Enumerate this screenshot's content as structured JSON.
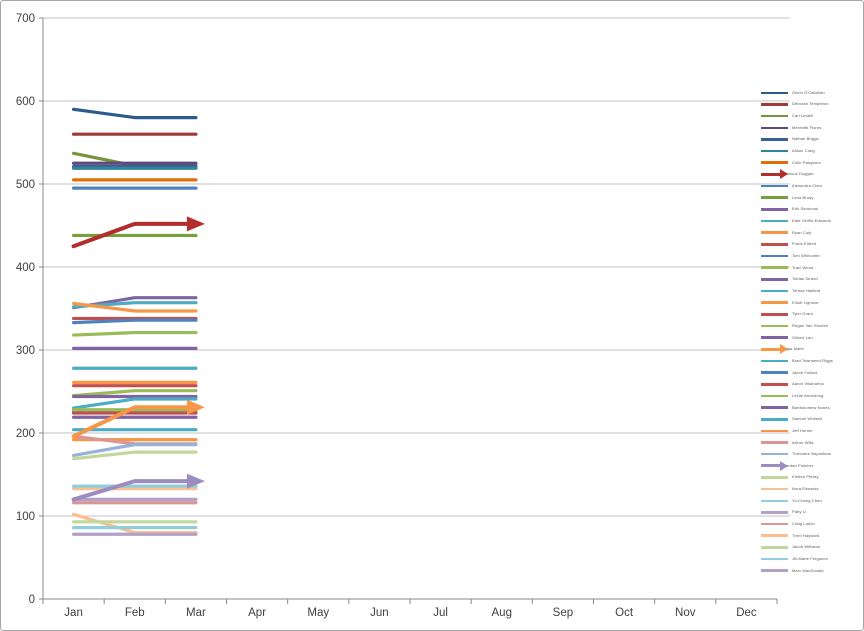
{
  "chart_data": {
    "type": "line",
    "title": "",
    "xlabel": "",
    "ylabel": "",
    "x_categories": [
      "Jan",
      "Feb",
      "Mar",
      "Apr",
      "May",
      "Jun",
      "Jul",
      "Aug",
      "Sep",
      "Oct",
      "Nov",
      "Dec"
    ],
    "y_ticks": [
      0,
      100,
      200,
      300,
      400,
      500,
      600,
      700
    ],
    "ylim": [
      0,
      700
    ],
    "grid": "horizontal",
    "legend_position": "right",
    "plotted_range_note": "series have data for Jan-Mar only",
    "series": [
      {
        "name": "Gavin O'Callahan",
        "color": "#2c5a8c",
        "arrow": false,
        "values": [
          590,
          580,
          580
        ]
      },
      {
        "name": "Deborah Templeton",
        "color": "#9e3a38",
        "arrow": false,
        "values": [
          560,
          560,
          560
        ]
      },
      {
        "name": "Carl Lindell",
        "color": "#77933c",
        "arrow": false,
        "values": [
          537,
          522,
          522
        ]
      },
      {
        "name": "Meredith Flores",
        "color": "#60497b",
        "arrow": false,
        "values": [
          525,
          525,
          525
        ]
      },
      {
        "name": "Nathan Briggs",
        "color": "#376092",
        "arrow": false,
        "values": [
          521,
          521,
          521
        ]
      },
      {
        "name": "Alison Craig",
        "color": "#31849b",
        "arrow": false,
        "values": [
          519,
          519,
          519
        ]
      },
      {
        "name": "Colin Pangborn",
        "color": "#e36c0a",
        "arrow": false,
        "values": [
          505,
          505,
          505
        ]
      },
      {
        "name": "Marcus Duggan",
        "color": "#b02e2c",
        "arrow": true,
        "values": [
          425,
          452,
          452
        ]
      },
      {
        "name": "Alexandra Chen",
        "color": "#4f81bd",
        "arrow": false,
        "values": [
          495,
          495,
          495
        ]
      },
      {
        "name": "Lena Brody",
        "color": "#76a03e",
        "arrow": false,
        "values": [
          438,
          438,
          438
        ]
      },
      {
        "name": "Erik Sandoval",
        "color": "#8064a2",
        "arrow": false,
        "values": [
          351,
          363,
          363
        ]
      },
      {
        "name": "Kate Griffin-Edwards",
        "color": "#4bacc6",
        "arrow": false,
        "values": [
          352,
          357,
          357
        ]
      },
      {
        "name": "Ryan Culp",
        "color": "#f79646",
        "arrow": false,
        "values": [
          356,
          347,
          347
        ]
      },
      {
        "name": "Frank Eldred",
        "color": "#c0504d",
        "arrow": false,
        "values": [
          338,
          338,
          338
        ]
      },
      {
        "name": "Tom Whitcomb",
        "color": "#4f81bd",
        "arrow": false,
        "values": [
          333,
          336,
          336
        ]
      },
      {
        "name": "Traci Wood",
        "color": "#9bbb59",
        "arrow": false,
        "values": [
          318,
          321,
          321
        ]
      },
      {
        "name": "Tobias Strand",
        "color": "#8064a2",
        "arrow": false,
        "values": [
          302,
          302,
          302
        ]
      },
      {
        "name": "Teresa Hatfield",
        "color": "#4bacc6",
        "arrow": false,
        "values": [
          278,
          278,
          278
        ]
      },
      {
        "name": "Elliott Lightner",
        "color": "#f79646",
        "arrow": false,
        "values": [
          261,
          261,
          261
        ]
      },
      {
        "name": "Tyler Grant",
        "color": "#c0504d",
        "arrow": false,
        "values": [
          257,
          257,
          257
        ]
      },
      {
        "name": "Regan Van Slooten",
        "color": "#9bbb59",
        "arrow": false,
        "values": [
          245,
          251,
          251
        ]
      },
      {
        "name": "Gilbert Lau",
        "color": "#8064a2",
        "arrow": false,
        "values": [
          244,
          244,
          244
        ]
      },
      {
        "name": "Lara Maier",
        "color": "#f79646",
        "arrow": true,
        "values": [
          196,
          231,
          231
        ]
      },
      {
        "name": "Brad Townsend-Riggs",
        "color": "#4bacc6",
        "arrow": false,
        "values": [
          230,
          241,
          241
        ]
      },
      {
        "name": "Jacob Fullard",
        "color": "#4f81bd",
        "arrow": false,
        "values": [
          226,
          226,
          226
        ]
      },
      {
        "name": "Aaron Villanueva",
        "color": "#c0504d",
        "arrow": false,
        "values": [
          224,
          224,
          224
        ]
      },
      {
        "name": "Leslie Armstrong",
        "color": "#9bbb59",
        "arrow": false,
        "values": [
          228,
          228,
          228
        ]
      },
      {
        "name": "Bartholomew Nunes",
        "color": "#8064a2",
        "arrow": false,
        "values": [
          219,
          219,
          219
        ]
      },
      {
        "name": "Samuel Whitsell",
        "color": "#4bacc6",
        "arrow": false,
        "values": [
          204,
          204,
          204
        ]
      },
      {
        "name": "Jeff Horner",
        "color": "#f79646",
        "arrow": false,
        "values": [
          192,
          192,
          192
        ]
      },
      {
        "name": "Arturo Wills",
        "color": "#d99694",
        "arrow": false,
        "values": [
          196,
          187,
          187
        ]
      },
      {
        "name": "Theodore Napolitano",
        "color": "#95b3d7",
        "arrow": false,
        "values": [
          173,
          186,
          186
        ]
      },
      {
        "name": "Jordan Fletcher",
        "color": "#9d8cc2",
        "arrow": true,
        "values": [
          120,
          142,
          142
        ]
      },
      {
        "name": "Kirsten Plessy",
        "color": "#c3d69b",
        "arrow": false,
        "values": [
          169,
          177,
          177
        ]
      },
      {
        "name": "Nora Edwards",
        "color": "#fac090",
        "arrow": false,
        "values": [
          133,
          133,
          133
        ]
      },
      {
        "name": "Yu-Cheng Chen",
        "color": "#92cddc",
        "arrow": false,
        "values": [
          136,
          136,
          136
        ]
      },
      {
        "name": "Patty Li",
        "color": "#b3a2c7",
        "arrow": false,
        "values": [
          120,
          120,
          120
        ]
      },
      {
        "name": "Craig Larkin",
        "color": "#d99694",
        "arrow": false,
        "values": [
          116,
          116,
          116
        ]
      },
      {
        "name": "Trent Hayward",
        "color": "#fbbf8f",
        "arrow": false,
        "values": [
          102,
          80,
          80
        ]
      },
      {
        "name": "Jacob Williams",
        "color": "#c3d69b",
        "arrow": false,
        "values": [
          93,
          93,
          93
        ]
      },
      {
        "name": "Jill-Marie Ferguson",
        "color": "#92cddc",
        "arrow": false,
        "values": [
          86,
          86,
          86
        ]
      },
      {
        "name": "Marc MacDonald",
        "color": "#b2a1c7",
        "arrow": false,
        "values": [
          78,
          78,
          78
        ]
      }
    ]
  },
  "colors": {
    "gridline": "#c3c3c3",
    "axis": "#898989",
    "tick_label": "#3f3f3f",
    "legend_text": "#595959",
    "background": "#ffffff",
    "border": "#a6a6a6"
  }
}
